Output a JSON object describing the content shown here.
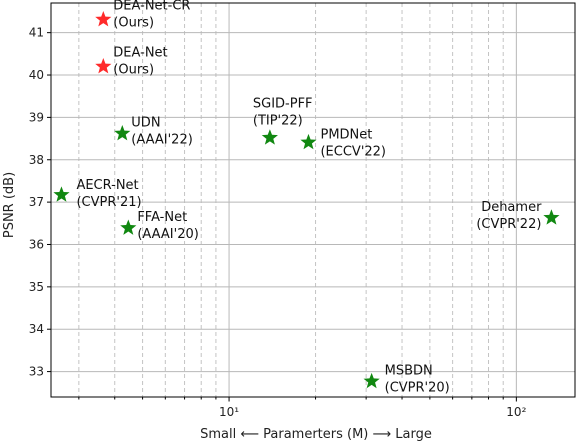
{
  "chart_data": {
    "type": "scatter",
    "title": "",
    "xlabel": "Small ⟵ Paramerters (M) ⟶ Large",
    "ylabel": "PSNR (dB)",
    "xscale": "log",
    "xlim": [
      2.4,
      160
    ],
    "ylim": [
      32.4,
      41.7
    ],
    "x_ticks": [
      10,
      100
    ],
    "x_tick_labels": [
      "10¹",
      "10²"
    ],
    "y_ticks": [
      33,
      34,
      35,
      36,
      37,
      38,
      39,
      40,
      41
    ],
    "grid": true,
    "points": [
      {
        "name": "DEA-Net-CR",
        "sub": "(Ours)",
        "x": 3.65,
        "y": 41.31,
        "color": "#ff2a2a"
      },
      {
        "name": "DEA-Net",
        "sub": "(Ours)",
        "x": 3.65,
        "y": 40.2,
        "color": "#ff2a2a"
      },
      {
        "name": "UDN",
        "sub": "(AAAI'22)",
        "x": 4.25,
        "y": 38.62,
        "color": "#118811"
      },
      {
        "name": "AECR-Net",
        "sub": "(CVPR'21)",
        "x": 2.61,
        "y": 37.17,
        "color": "#118811"
      },
      {
        "name": "FFA-Net",
        "sub": "(AAAI'20)",
        "x": 4.46,
        "y": 36.39,
        "color": "#118811"
      },
      {
        "name": "SGID-PFF",
        "sub": "(TIP'22)",
        "x": 13.87,
        "y": 38.52,
        "color": "#118811"
      },
      {
        "name": "PMDNet",
        "sub": "(ECCV'22)",
        "x": 18.9,
        "y": 38.41,
        "color": "#118811"
      },
      {
        "name": "Dehamer",
        "sub": "(CVPR'22)",
        "x": 132.45,
        "y": 36.63,
        "color": "#118811"
      },
      {
        "name": "MSBDN",
        "sub": "(CVPR'20)",
        "x": 31.35,
        "y": 32.77,
        "color": "#118811"
      }
    ]
  }
}
